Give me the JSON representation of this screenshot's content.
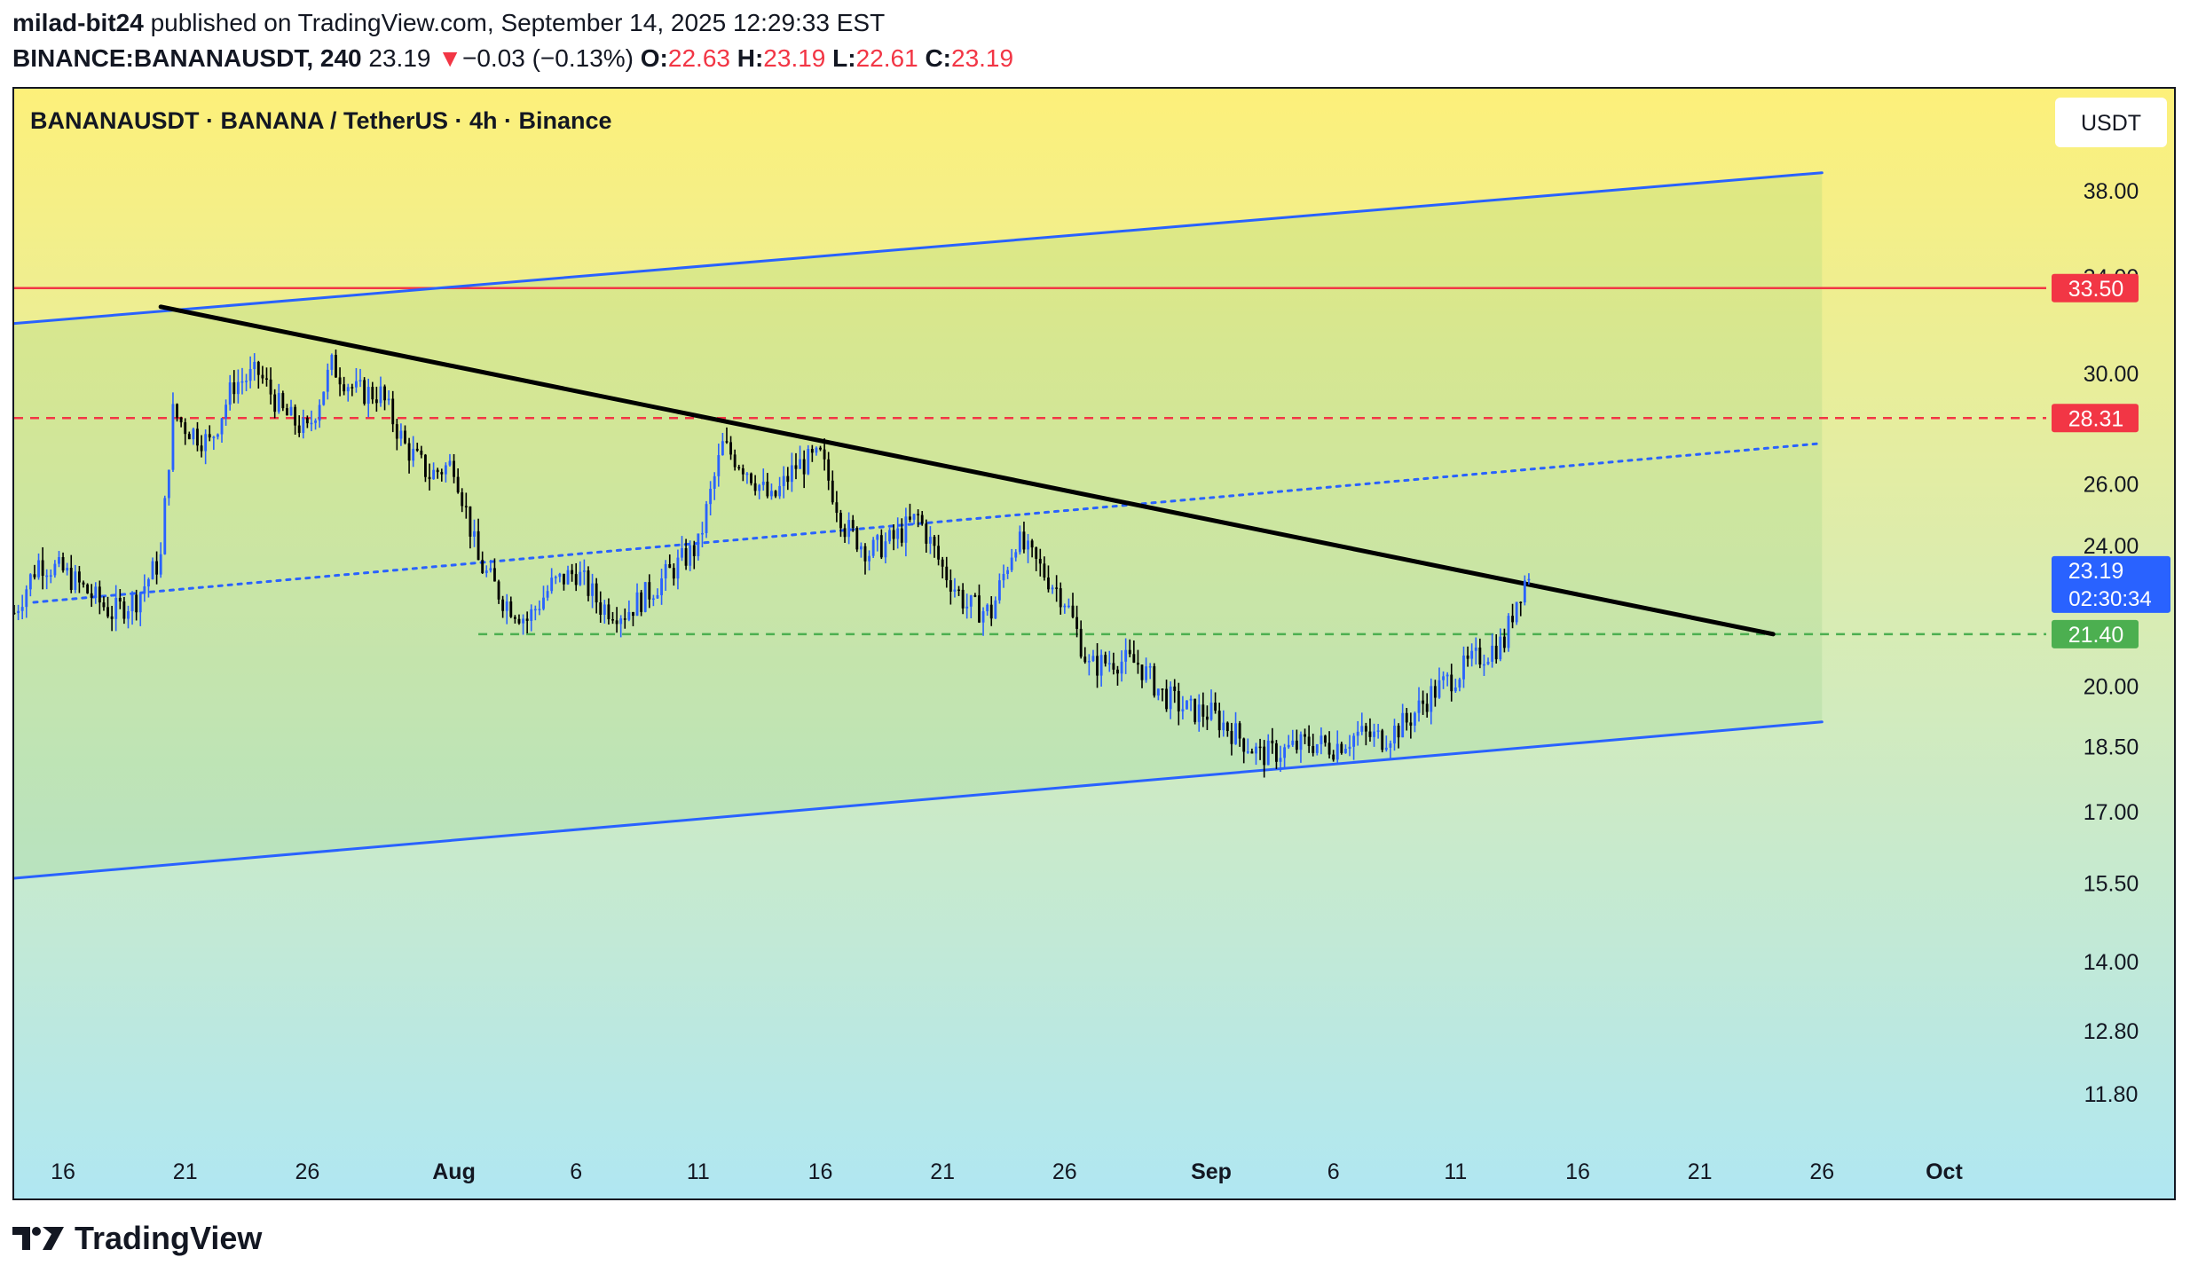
{
  "header": {
    "author": "milad-bit24",
    "published_text": "published on TradingView.com, September 14, 2025 12:29:33 EST",
    "symbol_line": "BINANCE:BANANAUSDT, 240",
    "last": "23.19",
    "arrow": "▼",
    "change": "−0.03 (−0.13%)",
    "o_label": "O:",
    "o_value": "22.63",
    "h_label": "H:",
    "h_value": "23.19",
    "l_label": "L:",
    "l_value": "22.61",
    "c_label": "C:",
    "c_value": "23.19"
  },
  "legend": {
    "title": "BANANAUSDT · BANANA / TetherUS · 4h · Binance"
  },
  "currency_button": "USDT",
  "footer": {
    "brand": "TradingView"
  },
  "chart_data": {
    "type": "candlestick",
    "title": "BANANAUSDT · BANANA / TetherUS · 4h · Binance",
    "y_scale": "log",
    "y_range": [
      10.8,
      42.0
    ],
    "x_range": [
      "2025-07-14",
      "2025-10-03"
    ],
    "y_ticks": [
      "38.00",
      "34.00",
      "30.00",
      "26.00",
      "24.00",
      "20.00",
      "18.50",
      "17.00",
      "15.50",
      "14.00",
      "12.80",
      "11.80"
    ],
    "x_ticks": [
      {
        "label": "16",
        "date": "2025-07-16"
      },
      {
        "label": "21",
        "date": "2025-07-21"
      },
      {
        "label": "26",
        "date": "2025-07-26"
      },
      {
        "label": "Aug",
        "date": "2025-08-01"
      },
      {
        "label": "6",
        "date": "2025-08-06"
      },
      {
        "label": "11",
        "date": "2025-08-11"
      },
      {
        "label": "16",
        "date": "2025-08-16"
      },
      {
        "label": "21",
        "date": "2025-08-21"
      },
      {
        "label": "26",
        "date": "2025-08-26"
      },
      {
        "label": "Sep",
        "date": "2025-09-01"
      },
      {
        "label": "6",
        "date": "2025-09-06"
      },
      {
        "label": "11",
        "date": "2025-09-11"
      },
      {
        "label": "16",
        "date": "2025-09-16"
      },
      {
        "label": "21",
        "date": "2025-09-21"
      },
      {
        "label": "26",
        "date": "2025-09-26"
      },
      {
        "label": "Oct",
        "date": "2025-10-01"
      }
    ],
    "price_badges": [
      {
        "label": "33.50",
        "value": 33.5,
        "color": "#f23645"
      },
      {
        "label": "28.31",
        "value": 28.31,
        "color": "#f23645"
      },
      {
        "label": "23.19",
        "value": 23.19,
        "color": "#2962ff",
        "countdown": "02:30:34"
      },
      {
        "label": "21.40",
        "value": 21.4,
        "color": "#4caf50"
      }
    ],
    "horizontal_lines": [
      {
        "value": 33.5,
        "color": "#f23645",
        "style": "solid",
        "from": "2025-07-14"
      },
      {
        "value": 28.31,
        "color": "#f23645",
        "style": "dashed",
        "from": "2025-07-14"
      },
      {
        "value": 21.4,
        "color": "#4caf50",
        "style": "dashed",
        "from": "2025-08-02"
      }
    ],
    "trend_lines": [
      {
        "name": "channel-top",
        "color": "#2962ff",
        "style": "solid",
        "p1": {
          "date": "2025-07-14",
          "value": 32.0
        },
        "p2": {
          "date": "2025-09-26",
          "value": 38.9
        }
      },
      {
        "name": "channel-mid",
        "color": "#2962ff",
        "style": "dotted",
        "p1": {
          "date": "2025-07-14.8",
          "value": 22.3
        },
        "p2": {
          "date": "2025-09-26",
          "value": 27.4
        }
      },
      {
        "name": "channel-bottom",
        "color": "#2962ff",
        "style": "solid",
        "p1": {
          "date": "2025-07-14",
          "value": 15.6
        },
        "p2": {
          "date": "2025-09-26",
          "value": 19.1
        }
      },
      {
        "name": "downtrend",
        "color": "#000000",
        "style": "solid",
        "p1": {
          "date": "2025-07-20",
          "value": 32.7
        },
        "p2": {
          "date": "2025-09-24",
          "value": 21.4
        }
      }
    ],
    "series_close_path": [
      {
        "date": "2025-07-14",
        "value": 22.0
      },
      {
        "date": "2025-07-15",
        "value": 23.5
      },
      {
        "date": "2025-07-16",
        "value": 23.2
      },
      {
        "date": "2025-07-17",
        "value": 22.6
      },
      {
        "date": "2025-07-18",
        "value": 22.0
      },
      {
        "date": "2025-07-19",
        "value": 22.4
      },
      {
        "date": "2025-07-20",
        "value": 23.6
      },
      {
        "date": "2025-07-20.5",
        "value": 28.5
      },
      {
        "date": "2025-07-21",
        "value": 28.0
      },
      {
        "date": "2025-07-22",
        "value": 27.4
      },
      {
        "date": "2025-07-23",
        "value": 29.6
      },
      {
        "date": "2025-07-24",
        "value": 30.0
      },
      {
        "date": "2025-07-25",
        "value": 28.5
      },
      {
        "date": "2025-07-26",
        "value": 27.8
      },
      {
        "date": "2025-07-27",
        "value": 30.3
      },
      {
        "date": "2025-07-28",
        "value": 29.3
      },
      {
        "date": "2025-07-29",
        "value": 29.2
      },
      {
        "date": "2025-07-30",
        "value": 27.3
      },
      {
        "date": "2025-07-31",
        "value": 26.3
      },
      {
        "date": "2025-08-01",
        "value": 26.7
      },
      {
        "date": "2025-08-02",
        "value": 23.5
      },
      {
        "date": "2025-08-03",
        "value": 22.4
      },
      {
        "date": "2025-08-04",
        "value": 21.8
      },
      {
        "date": "2025-08-05",
        "value": 22.8
      },
      {
        "date": "2025-08-06",
        "value": 23.2
      },
      {
        "date": "2025-08-07",
        "value": 22.2
      },
      {
        "date": "2025-08-08",
        "value": 22.0
      },
      {
        "date": "2025-08-09",
        "value": 22.6
      },
      {
        "date": "2025-08-10",
        "value": 23.3
      },
      {
        "date": "2025-08-11",
        "value": 24.0
      },
      {
        "date": "2025-08-12",
        "value": 27.3
      },
      {
        "date": "2025-08-13",
        "value": 26.5
      },
      {
        "date": "2025-08-14",
        "value": 25.4
      },
      {
        "date": "2025-08-15",
        "value": 26.6
      },
      {
        "date": "2025-08-16",
        "value": 26.9
      },
      {
        "date": "2025-08-17",
        "value": 24.6
      },
      {
        "date": "2025-08-18",
        "value": 23.8
      },
      {
        "date": "2025-08-19",
        "value": 24.2
      },
      {
        "date": "2025-08-20",
        "value": 24.9
      },
      {
        "date": "2025-08-21",
        "value": 23.3
      },
      {
        "date": "2025-08-22",
        "value": 22.2
      },
      {
        "date": "2025-08-23",
        "value": 22.0
      },
      {
        "date": "2025-08-24",
        "value": 24.2
      },
      {
        "date": "2025-08-25",
        "value": 23.3
      },
      {
        "date": "2025-08-26",
        "value": 22.4
      },
      {
        "date": "2025-08-27",
        "value": 20.5
      },
      {
        "date": "2025-08-28",
        "value": 20.7
      },
      {
        "date": "2025-08-29",
        "value": 20.6
      },
      {
        "date": "2025-08-30",
        "value": 19.8
      },
      {
        "date": "2025-08-31",
        "value": 19.4
      },
      {
        "date": "2025-09-01",
        "value": 19.3
      },
      {
        "date": "2025-09-02",
        "value": 18.8
      },
      {
        "date": "2025-09-03",
        "value": 18.3
      },
      {
        "date": "2025-09-04",
        "value": 18.4
      },
      {
        "date": "2025-09-05",
        "value": 18.6
      },
      {
        "date": "2025-09-06",
        "value": 18.5
      },
      {
        "date": "2025-09-07",
        "value": 18.8
      },
      {
        "date": "2025-09-08",
        "value": 18.7
      },
      {
        "date": "2025-09-09",
        "value": 19.1
      },
      {
        "date": "2025-09-10",
        "value": 19.8
      },
      {
        "date": "2025-09-11",
        "value": 20.3
      },
      {
        "date": "2025-09-12",
        "value": 20.8
      },
      {
        "date": "2025-09-13",
        "value": 21.2
      },
      {
        "date": "2025-09-13.5",
        "value": 22.4
      },
      {
        "date": "2025-09-14",
        "value": 23.19
      }
    ],
    "up_color": "#2962ff",
    "down_color": "#000000",
    "grid": false,
    "background_gradient": [
      "#fdf07a",
      "#b0e7f2"
    ]
  }
}
